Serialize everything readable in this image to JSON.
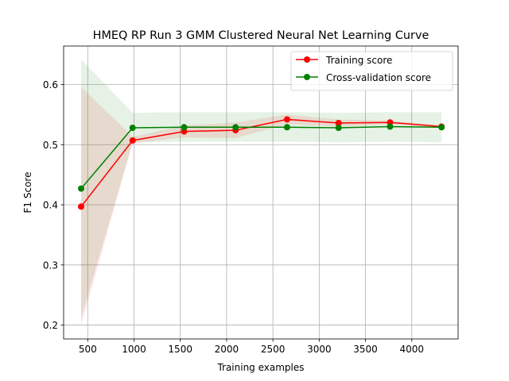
{
  "chart_data": {
    "type": "line",
    "title": "HMEQ RP Run 3 GMM Clustered Neural Net Learning Curve",
    "xlabel": "Training examples",
    "ylabel": "F1 Score",
    "xlim": [
      240,
      4500
    ],
    "ylim": [
      0.177,
      0.664
    ],
    "x_ticks": [
      500,
      1000,
      1500,
      2000,
      2500,
      3000,
      3500,
      4000
    ],
    "y_ticks": [
      0.2,
      0.3,
      0.4,
      0.5,
      0.6
    ],
    "y_tick_format": 1,
    "grid": true,
    "legend_position": "upper-right",
    "x": [
      429,
      985,
      1541,
      2097,
      2653,
      3209,
      3765,
      4321
    ],
    "series": [
      {
        "name": "Training score",
        "color": "#ff0000",
        "values": [
          0.397,
          0.507,
          0.522,
          0.524,
          0.542,
          0.536,
          0.537,
          0.53
        ],
        "band_upper": [
          0.596,
          0.513,
          0.532,
          0.537,
          0.55,
          0.542,
          0.54,
          0.532
        ],
        "band_lower": [
          0.2,
          0.502,
          0.512,
          0.511,
          0.534,
          0.53,
          0.534,
          0.528
        ]
      },
      {
        "name": "Cross-validation score",
        "color": "#008000",
        "values": [
          0.427,
          0.528,
          0.529,
          0.529,
          0.529,
          0.528,
          0.53,
          0.529
        ],
        "band_upper": [
          0.642,
          0.553,
          0.554,
          0.554,
          0.554,
          0.553,
          0.554,
          0.554
        ],
        "band_lower": [
          0.212,
          0.504,
          0.505,
          0.505,
          0.505,
          0.504,
          0.505,
          0.504
        ]
      }
    ]
  }
}
